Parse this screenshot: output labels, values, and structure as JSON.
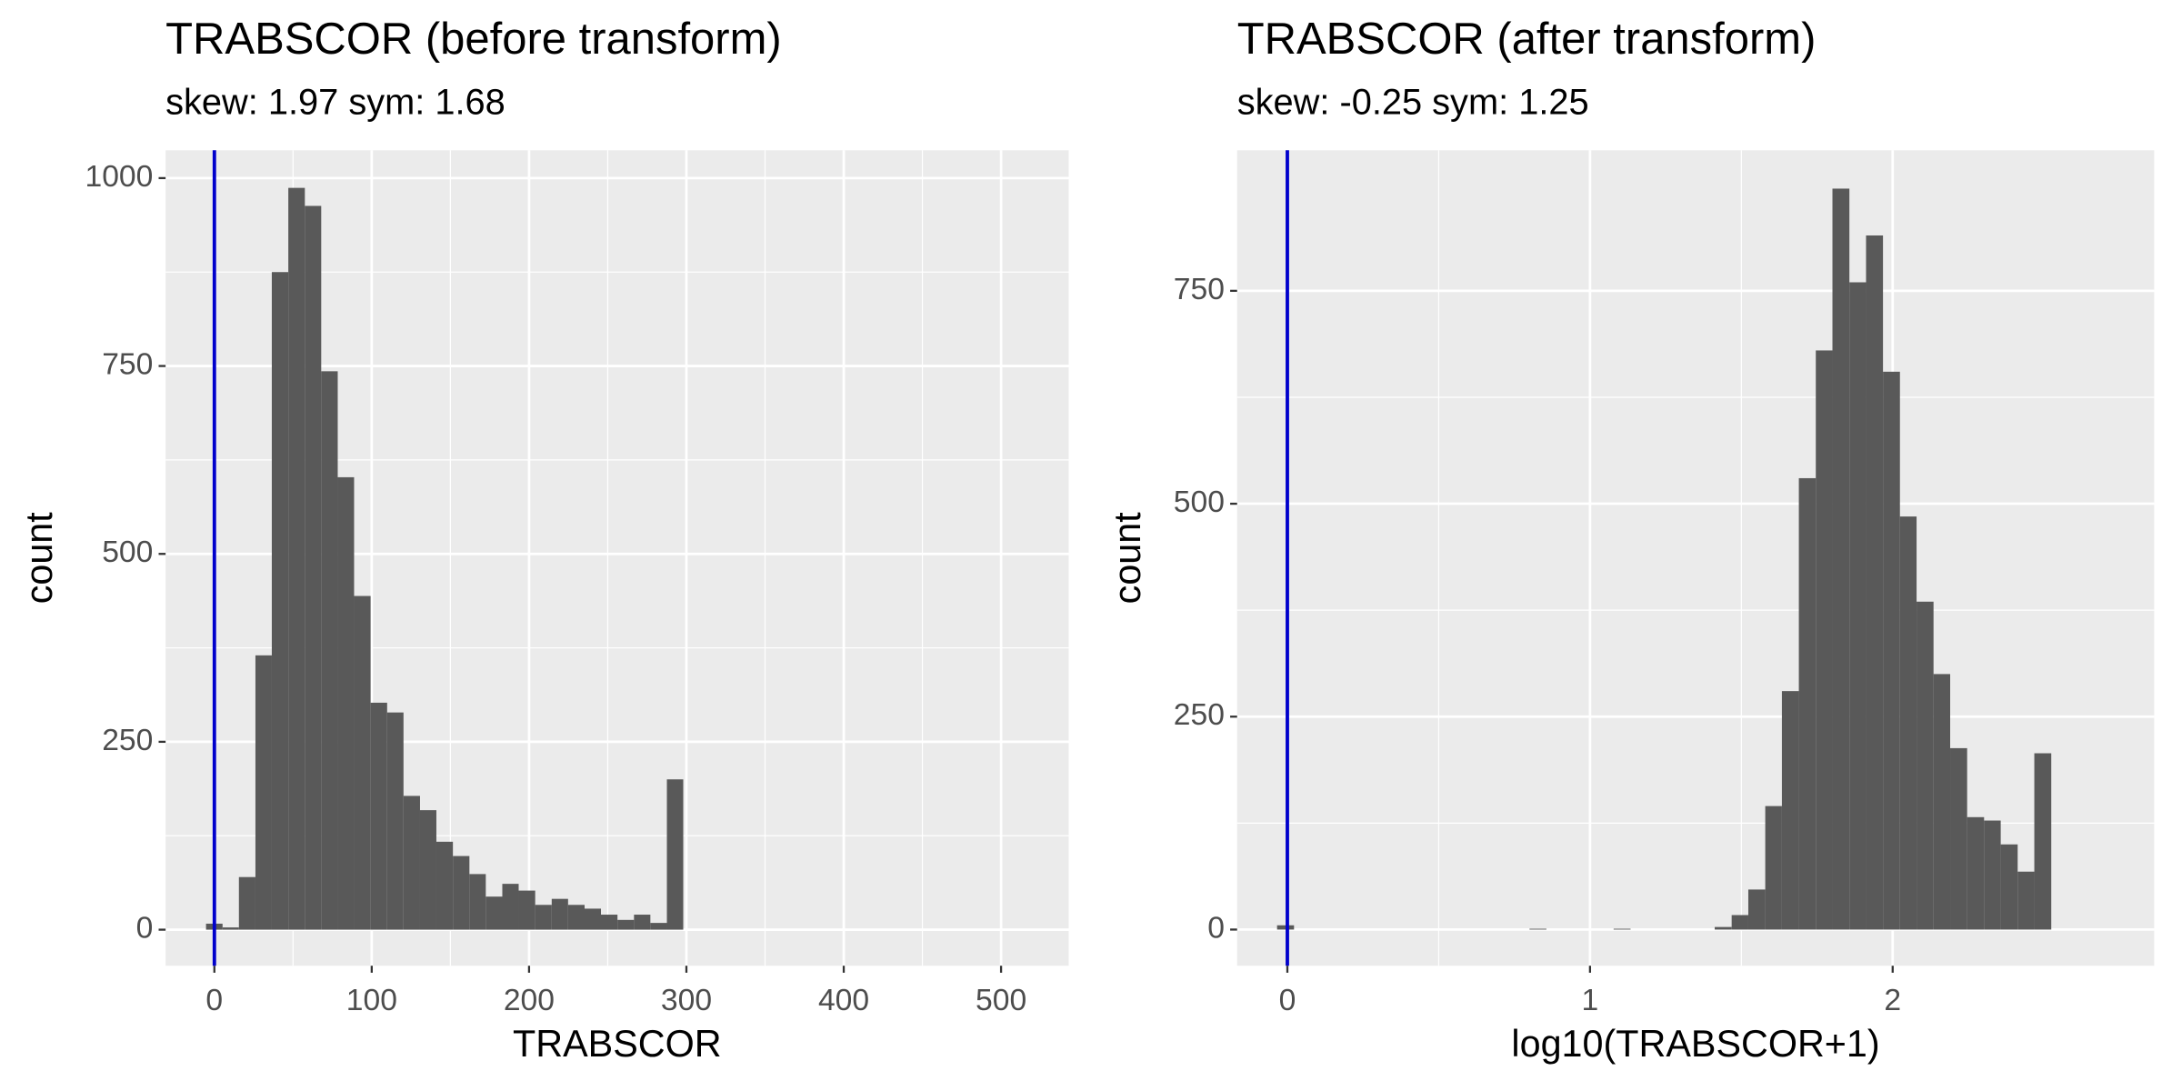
{
  "chart_data": [
    {
      "type": "histogram",
      "title": "TRABSCOR (before transform)",
      "subtitle": "skew: 1.97 sym: 1.68",
      "xlabel": "TRABSCOR",
      "ylabel": "count",
      "bins": [
        -5.3,
        5.2,
        15.6,
        26.1,
        36.5,
        47.0,
        57.5,
        67.9,
        78.4,
        88.8,
        99.3,
        109.8,
        120.2,
        130.7,
        141.1,
        151.6,
        162.1,
        172.5,
        183.0,
        193.4,
        203.9,
        214.4,
        224.8,
        235.3,
        245.7,
        256.2,
        266.7,
        277.1,
        287.6,
        298.0,
        308.5
      ],
      "counts": [
        8,
        3,
        70,
        365,
        875,
        987,
        963,
        743,
        602,
        444,
        302,
        289,
        178,
        159,
        117,
        98,
        74,
        44,
        61,
        52,
        33,
        41,
        33,
        28,
        20,
        13,
        20,
        9,
        200,
        0
      ],
      "color": "#595959",
      "xlim": [
        -31,
        543
      ],
      "ylim": [
        -48,
        1037
      ],
      "xticks": [
        0,
        100,
        200,
        300,
        400,
        500
      ],
      "yticks": [
        0,
        250,
        500,
        750,
        1000
      ],
      "vline": 0,
      "vline_color": "#0000cc",
      "grid": true
    },
    {
      "type": "histogram",
      "title": "TRABSCOR (after transform)",
      "subtitle": "skew: -0.25 sym: 1.25",
      "xlabel": "log10(TRABSCOR+1)",
      "ylabel": "count",
      "bins": [
        -0.034,
        0.022,
        0.078,
        0.133,
        0.189,
        0.244,
        0.3,
        0.356,
        0.411,
        0.467,
        0.522,
        0.578,
        0.634,
        0.689,
        0.745,
        0.8,
        0.856,
        0.912,
        0.967,
        1.023,
        1.078,
        1.134,
        1.19,
        1.245,
        1.301,
        1.356,
        1.412,
        1.468,
        1.523,
        1.579,
        1.634,
        1.69,
        1.746,
        1.801,
        1.857,
        1.912,
        1.968,
        2.024,
        2.079,
        2.135,
        2.19,
        2.246,
        2.302,
        2.357,
        2.413,
        2.468,
        2.524
      ],
      "counts": [
        5,
        0,
        0,
        0,
        0,
        0,
        0,
        0,
        0,
        0,
        0,
        0,
        0,
        0,
        0,
        1,
        0,
        0,
        0,
        0,
        1,
        0,
        0,
        0,
        0,
        0,
        3,
        17,
        47,
        145,
        280,
        530,
        680,
        870,
        760,
        815,
        655,
        485,
        385,
        300,
        213,
        132,
        128,
        100,
        68,
        207
      ],
      "color": "#595959",
      "xlim": [
        -0.166,
        2.864
      ],
      "ylim": [
        -42.5,
        915
      ],
      "xticks": [
        0,
        1,
        2
      ],
      "yticks": [
        0,
        250,
        500,
        750
      ],
      "vline": 0,
      "vline_color": "#0000cc",
      "grid": true
    }
  ]
}
